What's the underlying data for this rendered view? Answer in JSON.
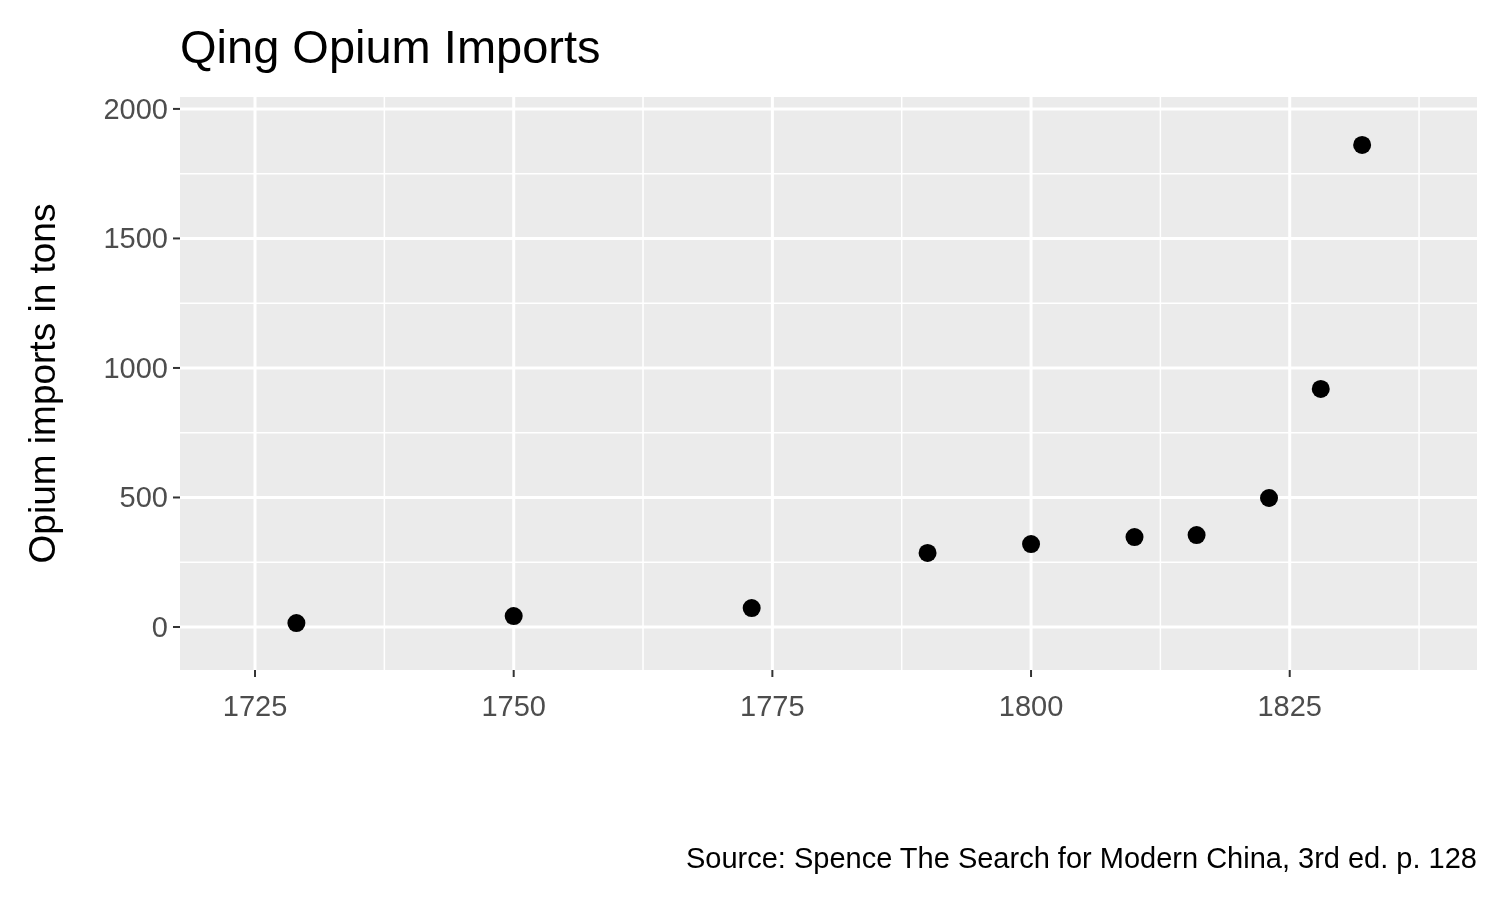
{
  "chart_data": {
    "type": "scatter",
    "title": "Qing Opium Imports",
    "ylabel": "Opium imports in tons",
    "annotations": [
      "Source: Spence The Search for Modern China, 3rd ed. p. 128"
    ],
    "x": [
      1729,
      1750,
      1773,
      1790,
      1800,
      1810,
      1816,
      1823,
      1828,
      1832
    ],
    "values": [
      15,
      42,
      73,
      286,
      320,
      347,
      355,
      498,
      919,
      1861
    ],
    "color": "#000000",
    "marker": "circle",
    "xlim": [
      1717.75,
      1843.1
    ],
    "xticks": [
      1725,
      1750,
      1775,
      1800,
      1825
    ],
    "ylim": [
      -166,
      2046
    ],
    "yticks": [
      0,
      500,
      1000,
      1500,
      2000
    ],
    "grid": true
  }
}
